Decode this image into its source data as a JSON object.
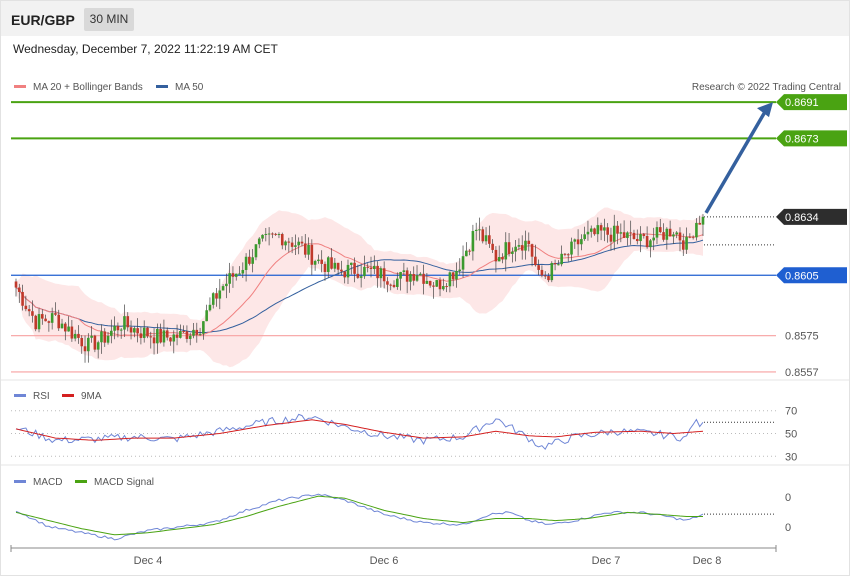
{
  "header": {
    "symbol": "EUR/GBP",
    "timeframe": "30 MIN"
  },
  "datetime": "Wednesday, December 7, 2022 11:22:19 AM CET",
  "credit": "Research © 2022 Trading Central",
  "colors": {
    "bull": "#3c9a2e",
    "bear": "#c0392b",
    "ma20": "#f08080",
    "ma50": "#34609e",
    "bands": "#fde3e3",
    "target": "#4aa312",
    "pivot": "#1f5fd1",
    "support": "#f7a1a1",
    "rsi": "#6f86d6",
    "rsi_ma": "#d42020",
    "macd": "#6f86d6",
    "macd_signal": "#4aa312",
    "arrow": "#34609e"
  },
  "chart_data": [
    {
      "type": "candlestick",
      "legend": [
        {
          "label": "MA 20 + Bollinger Bands",
          "color": "#f08080"
        },
        {
          "label": "MA 50",
          "color": "#34609e"
        }
      ],
      "ylim": [
        0.8553,
        0.8697
      ],
      "x_ticks": [
        "Dec 4",
        "Dec 6",
        "Dec 7",
        "Dec 8"
      ],
      "current_price": "0.8634",
      "levels": [
        {
          "label": "0.8691",
          "value": 0.8691,
          "kind": "target"
        },
        {
          "label": "0.8673",
          "value": 0.8673,
          "kind": "target"
        },
        {
          "label": "0.8605",
          "value": 0.8605,
          "kind": "pivot"
        },
        {
          "label": "0.8575",
          "value": 0.8575,
          "kind": "support"
        },
        {
          "label": "0.8557",
          "value": 0.8557,
          "kind": "support"
        }
      ],
      "forecast_arrow": {
        "from": 0.8636,
        "to": 0.8691
      },
      "close_waypoints": [
        [
          0,
          0.8599
        ],
        [
          6,
          0.8582
        ],
        [
          12,
          0.8584
        ],
        [
          16,
          0.8578
        ],
        [
          22,
          0.857
        ],
        [
          26,
          0.8573
        ],
        [
          32,
          0.8581
        ],
        [
          38,
          0.8577
        ],
        [
          44,
          0.8574
        ],
        [
          50,
          0.8575
        ],
        [
          56,
          0.858
        ],
        [
          62,
          0.8598
        ],
        [
          68,
          0.8608
        ],
        [
          74,
          0.862
        ],
        [
          80,
          0.8625
        ],
        [
          86,
          0.862
        ],
        [
          92,
          0.8612
        ],
        [
          98,
          0.8607
        ],
        [
          104,
          0.8608
        ],
        [
          110,
          0.8606
        ],
        [
          116,
          0.8603
        ],
        [
          122,
          0.8607
        ],
        [
          128,
          0.86
        ],
        [
          134,
          0.8608
        ],
        [
          140,
          0.8628
        ],
        [
          146,
          0.8614
        ],
        [
          152,
          0.8622
        ],
        [
          156,
          0.8621
        ],
        [
          159,
          0.8604
        ],
        [
          162,
          0.8606
        ],
        [
          166,
          0.8612
        ],
        [
          172,
          0.8623
        ],
        [
          178,
          0.8626
        ],
        [
          184,
          0.8625
        ],
        [
          190,
          0.8622
        ],
        [
          196,
          0.8625
        ],
        [
          200,
          0.8628
        ],
        [
          204,
          0.862
        ],
        [
          207,
          0.8632
        ],
        [
          209,
          0.8634
        ]
      ]
    },
    {
      "type": "line",
      "legend": [
        {
          "label": "RSI",
          "color": "#6f86d6"
        },
        {
          "label": "9MA",
          "color": "#d42020"
        }
      ],
      "ylim": [
        25,
        75
      ],
      "y_ticks": [
        "70",
        "50",
        "30"
      ],
      "rsi_waypoints": [
        [
          0,
          55
        ],
        [
          12,
          44
        ],
        [
          24,
          45
        ],
        [
          36,
          47
        ],
        [
          48,
          45
        ],
        [
          62,
          52
        ],
        [
          76,
          60
        ],
        [
          90,
          65
        ],
        [
          100,
          56
        ],
        [
          112,
          48
        ],
        [
          124,
          44
        ],
        [
          136,
          47
        ],
        [
          146,
          63
        ],
        [
          156,
          46
        ],
        [
          160,
          38
        ],
        [
          170,
          47
        ],
        [
          182,
          52
        ],
        [
          194,
          50
        ],
        [
          204,
          46
        ],
        [
          206,
          60
        ],
        [
          209,
          57
        ]
      ],
      "ma_waypoints": [
        [
          0,
          54
        ],
        [
          12,
          46
        ],
        [
          24,
          44
        ],
        [
          36,
          46
        ],
        [
          48,
          46
        ],
        [
          62,
          50
        ],
        [
          76,
          57
        ],
        [
          90,
          62
        ],
        [
          100,
          58
        ],
        [
          112,
          51
        ],
        [
          124,
          46
        ],
        [
          136,
          47
        ],
        [
          146,
          52
        ],
        [
          156,
          48
        ],
        [
          164,
          47
        ],
        [
          176,
          51
        ],
        [
          190,
          52
        ],
        [
          200,
          50
        ],
        [
          209,
          52
        ]
      ]
    },
    {
      "type": "line",
      "legend": [
        {
          "label": "MACD",
          "color": "#6f86d6"
        },
        {
          "label": "MACD Signal",
          "color": "#4aa312"
        }
      ],
      "ylim": [
        -0.0014,
        0.0014
      ],
      "y_ticks": [
        "0",
        "0"
      ],
      "macd_waypoints": [
        [
          0,
          0.0003
        ],
        [
          10,
          -0.0005
        ],
        [
          20,
          -0.0008
        ],
        [
          30,
          -0.0011
        ],
        [
          40,
          -0.0007
        ],
        [
          50,
          -0.0005
        ],
        [
          60,
          -0.0003
        ],
        [
          70,
          0.0003
        ],
        [
          80,
          0.0008
        ],
        [
          92,
          0.0011
        ],
        [
          100,
          0.0008
        ],
        [
          112,
          0.0001
        ],
        [
          124,
          -0.0003
        ],
        [
          136,
          -0.0004
        ],
        [
          144,
          0.0001
        ],
        [
          150,
          0.0002
        ],
        [
          156,
          -0.0002
        ],
        [
          162,
          -0.0004
        ],
        [
          170,
          -0.0002
        ],
        [
          180,
          0.0002
        ],
        [
          190,
          0.0002
        ],
        [
          198,
          0.0
        ],
        [
          204,
          -0.0002
        ],
        [
          209,
          0.0001
        ]
      ],
      "signal_waypoints": [
        [
          0,
          0.0002
        ],
        [
          10,
          -0.0002
        ],
        [
          20,
          -0.0006
        ],
        [
          30,
          -0.0009
        ],
        [
          40,
          -0.0008
        ],
        [
          50,
          -0.0006
        ],
        [
          60,
          -0.0004
        ],
        [
          70,
          0.0
        ],
        [
          80,
          0.0005
        ],
        [
          92,
          0.001
        ],
        [
          100,
          0.0009
        ],
        [
          112,
          0.0003
        ],
        [
          124,
          -0.0001
        ],
        [
          136,
          -0.0003
        ],
        [
          146,
          -0.0001
        ],
        [
          156,
          -0.0001
        ],
        [
          164,
          -0.0002
        ],
        [
          174,
          -0.0001
        ],
        [
          186,
          0.0002
        ],
        [
          196,
          0.0001
        ],
        [
          204,
          0.0
        ],
        [
          209,
          0.0
        ]
      ]
    }
  ]
}
